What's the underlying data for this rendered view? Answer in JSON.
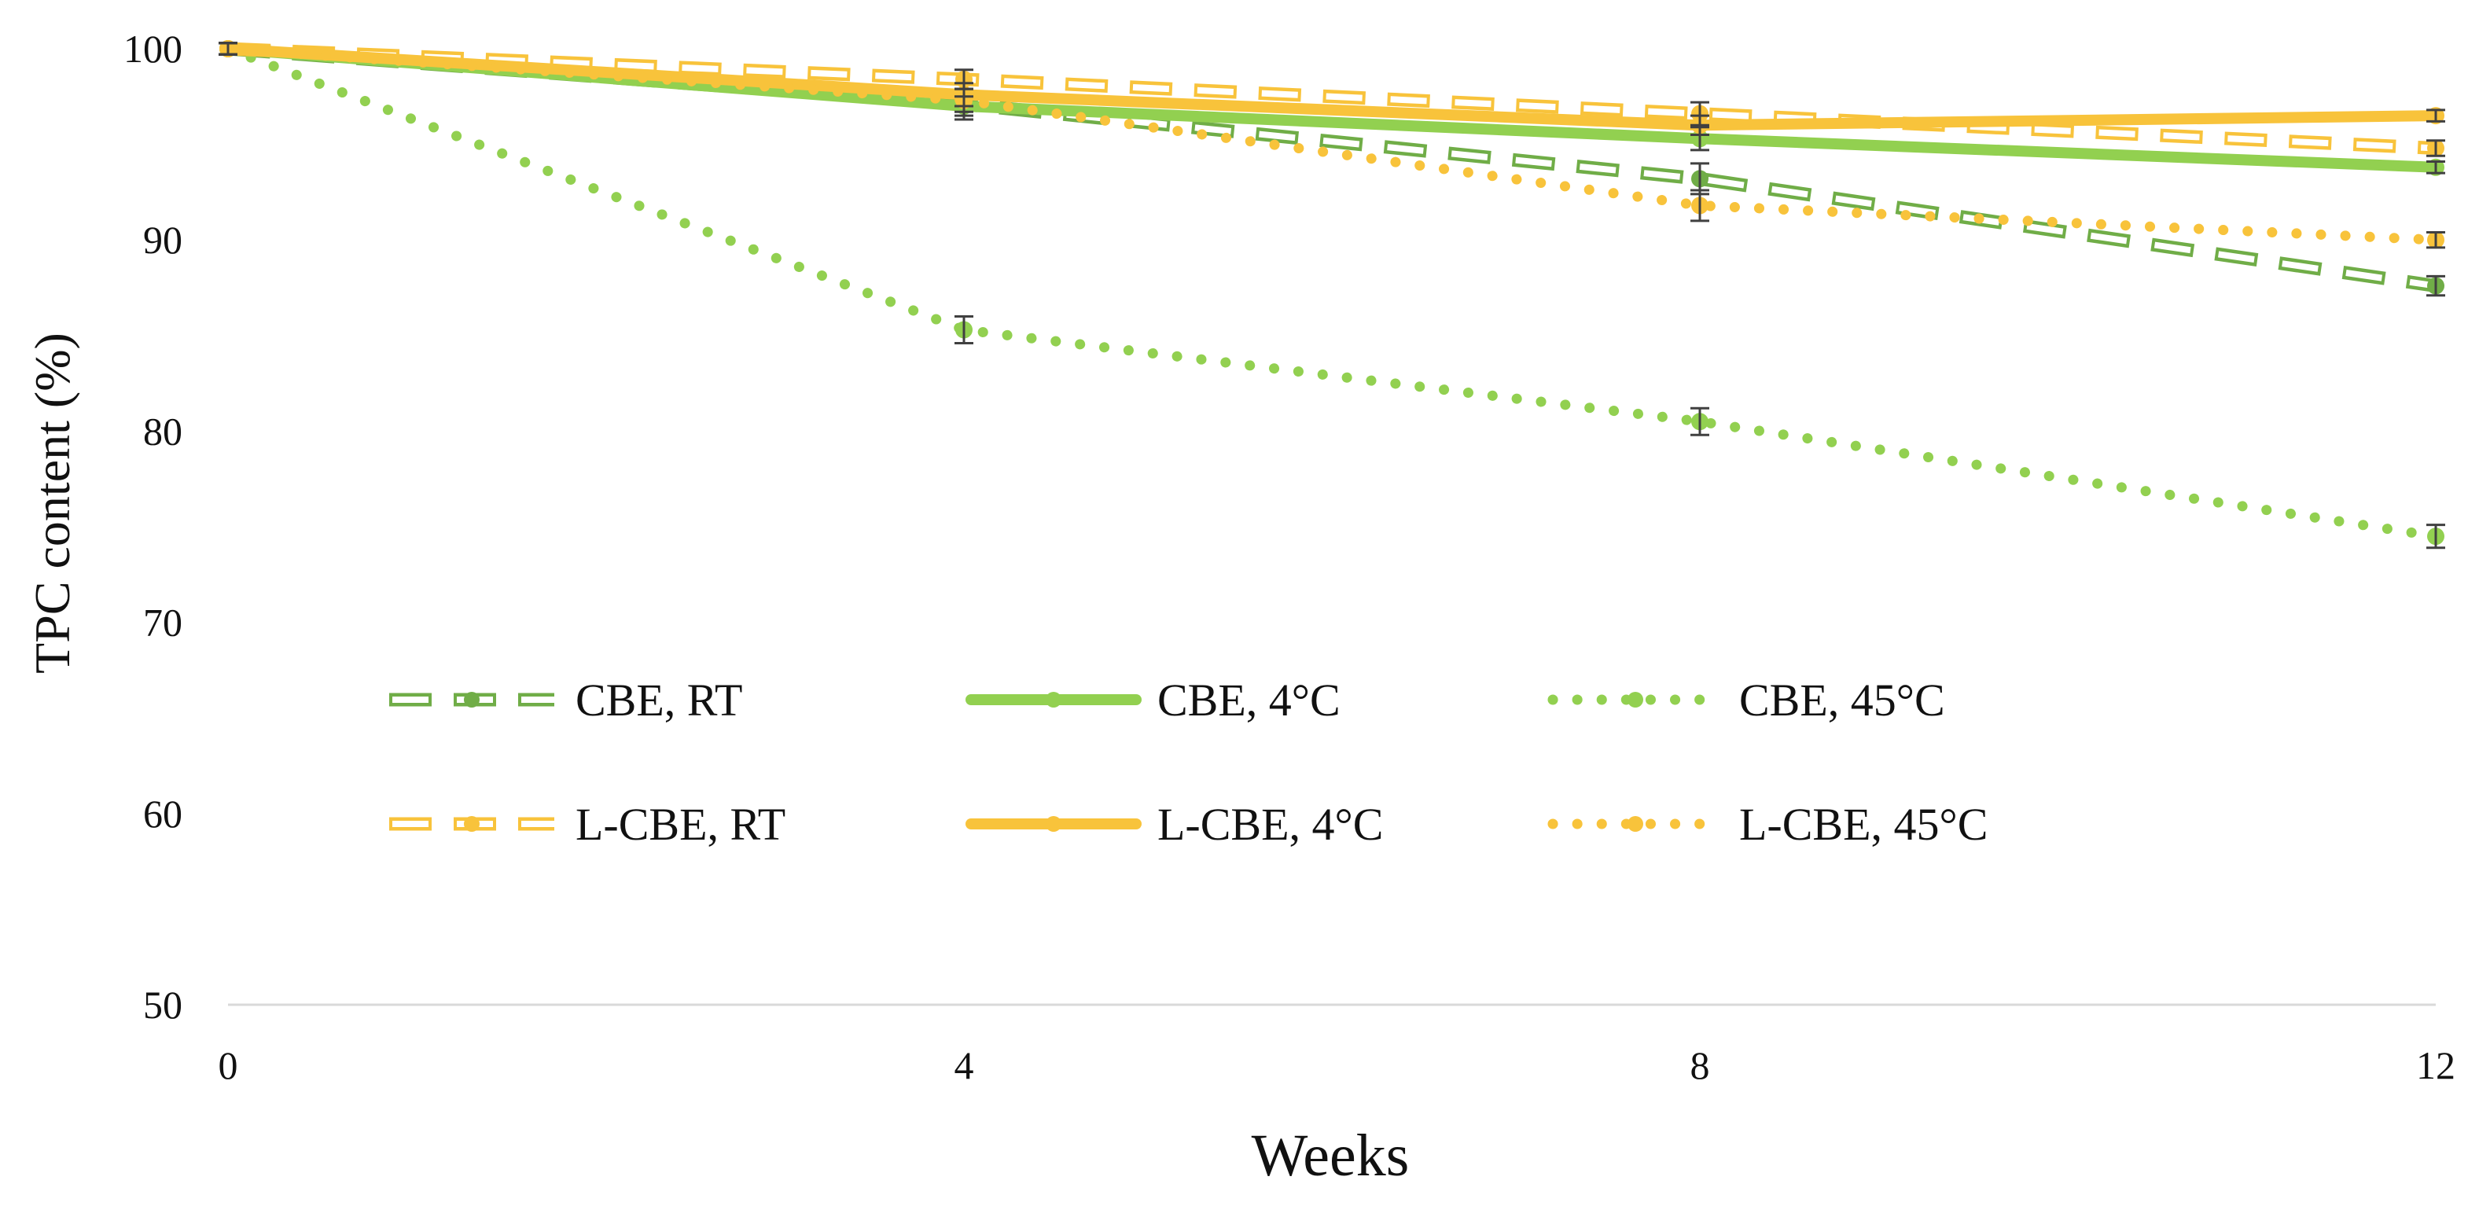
{
  "chart_data": {
    "type": "line",
    "title": "",
    "xlabel": "Weeks",
    "ylabel": "TPC content (%)",
    "x": [
      0,
      4,
      8,
      12
    ],
    "x_ticks": [
      "0",
      "4",
      "8",
      "12"
    ],
    "xlim": [
      0,
      12
    ],
    "ylim": [
      50,
      100
    ],
    "y_ticks": [
      "50",
      "60",
      "70",
      "80",
      "90",
      "100"
    ],
    "grid": false,
    "legend_position": "lower-left inside plot, two rows",
    "colors": {
      "green": "#92d050",
      "dark_green": "#70ad47",
      "yellow": "#f8c33b",
      "error_bar": "#404040",
      "axis": "#d9d9d9"
    },
    "series": [
      {
        "name": "CBE, RT",
        "values": [
          100,
          97.1,
          93.2,
          87.6
        ],
        "errors": [
          0.3,
          0.8,
          0.8,
          0.5
        ],
        "style": "dashed-open",
        "color": "#70ad47"
      },
      {
        "name": "CBE, 4°C",
        "values": [
          100,
          97.0,
          95.3,
          93.8
        ],
        "errors": [
          0.3,
          0.5,
          0.6,
          0.3
        ],
        "style": "solid",
        "color": "#92d050"
      },
      {
        "name": "CBE, 45°C",
        "values": [
          100,
          85.3,
          80.5,
          74.5
        ],
        "errors": [
          0.3,
          0.7,
          0.7,
          0.6
        ],
        "style": "dotted",
        "color": "#92d050"
      },
      {
        "name": "L-CBE, RT",
        "values": [
          100,
          98.4,
          96.6,
          94.8
        ],
        "errors": [
          0.3,
          0.5,
          0.6,
          0.4
        ],
        "style": "dashed-open",
        "color": "#f8c33b"
      },
      {
        "name": "L-CBE, 4°C",
        "values": [
          100,
          97.6,
          96.0,
          96.5
        ],
        "errors": [
          0.3,
          0.6,
          0.5,
          0.3
        ],
        "style": "solid",
        "color": "#f8c33b"
      },
      {
        "name": "L-CBE, 45°C",
        "values": [
          100,
          97.3,
          91.8,
          90.0
        ],
        "errors": [
          0.3,
          0.6,
          0.8,
          0.4
        ],
        "style": "dotted",
        "color": "#f8c33b"
      }
    ]
  }
}
